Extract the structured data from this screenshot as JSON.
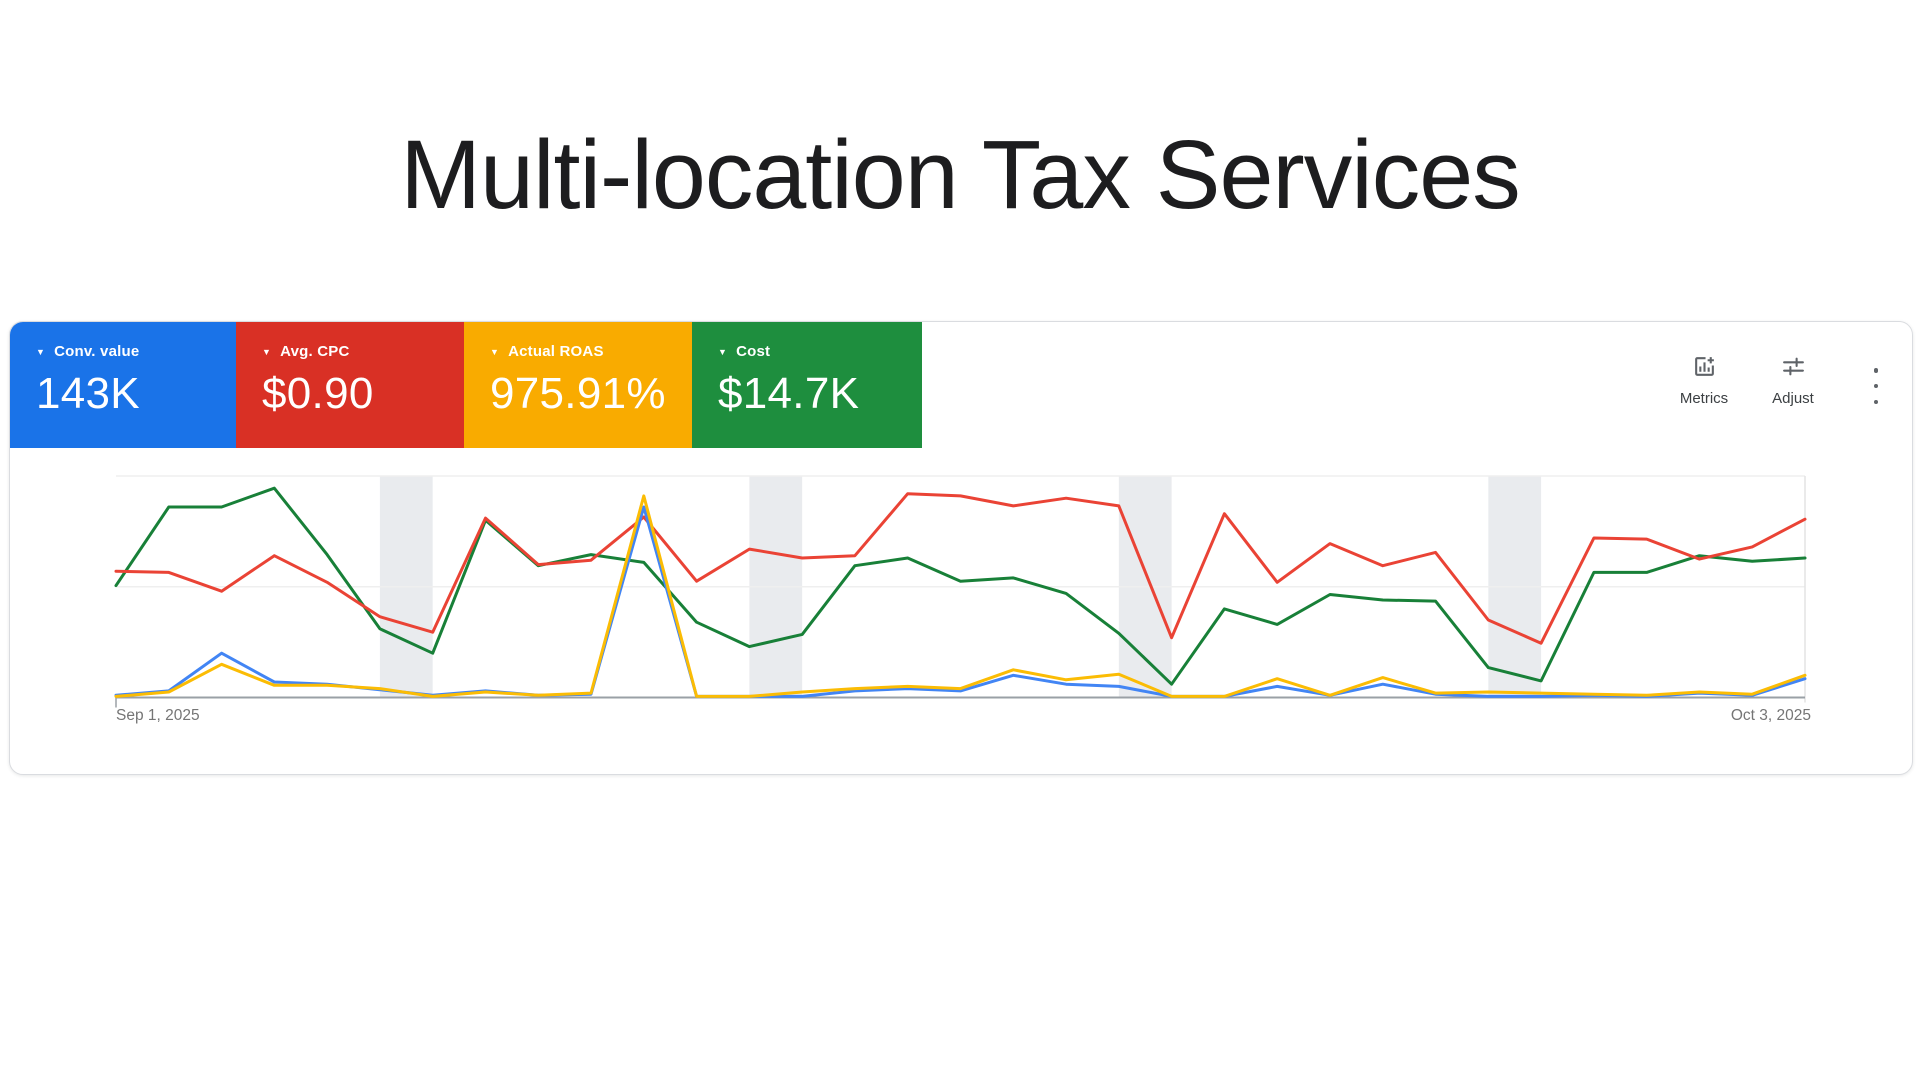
{
  "page": {
    "title": "Multi-location Tax Services"
  },
  "panel": {
    "metric_cards": [
      {
        "label": "Conv. value",
        "value": "143K",
        "color": "#1a73e8",
        "caret_icon": "dropdown-caret"
      },
      {
        "label": "Avg. CPC",
        "value": "$0.90",
        "color": "#d93025",
        "caret_icon": "dropdown-caret"
      },
      {
        "label": "Actual ROAS",
        "value": "975.91%",
        "color": "#f9ab00",
        "caret_icon": "dropdown-caret"
      },
      {
        "label": "Cost",
        "value": "$14.7K",
        "color": "#1e8e3e",
        "caret_icon": "dropdown-caret"
      }
    ],
    "toolbar": {
      "metrics_label": "Metrics",
      "metrics_icon": "add-chart-icon",
      "adjust_label": "Adjust",
      "adjust_icon": "tune-sliders-icon",
      "more_icon": "kebab-menu-icon",
      "icon_color": "#5f6368"
    }
  },
  "chart_data": {
    "type": "line",
    "title": "",
    "xlabel": "",
    "ylabel": "",
    "x_unit": "day",
    "num_points": 33,
    "x_start_label": "Sep 1, 2025",
    "x_end_label": "Oct 3, 2025",
    "ylim": [
      0,
      100
    ],
    "y_note": "values are percent of plot height; each series independently scaled (Google Ads overlay style)",
    "grid": "top and middle horizontal gridlines, baseline axis",
    "legend_position": "none (colors match metric cards)",
    "weekend_band_start_indices": [
      5,
      12,
      19,
      26
    ],
    "weekend_band_color": "#e9ebee",
    "gridline_color": "#efefef",
    "baseline_color": "#9aa0a6",
    "date_label_color": "#757575",
    "series": [
      {
        "name": "Conv. value",
        "color": "#4285f4",
        "z": 3,
        "values": [
          1,
          3,
          20,
          7,
          6,
          3.5,
          1,
          3,
          1,
          1.5,
          86,
          0.5,
          0.5,
          0.5,
          3,
          4,
          3,
          10,
          6,
          5,
          0.5,
          0.5,
          5,
          1,
          6,
          1.5,
          0.5,
          0.5,
          1,
          0.5,
          2,
          1,
          8.5
        ]
      },
      {
        "name": "Avg. CPC",
        "color": "#ea4335",
        "z": 2,
        "values": [
          57,
          56.5,
          48,
          64,
          52,
          36.5,
          29.5,
          81,
          60,
          62,
          81.5,
          52.5,
          67,
          63,
          64,
          92,
          91,
          86.5,
          90,
          86.5,
          27,
          83,
          52,
          69.5,
          59.5,
          65.5,
          35,
          24.5,
          72,
          71.5,
          62.5,
          68,
          80.5
        ]
      },
      {
        "name": "Actual ROAS",
        "color": "#fbbc04",
        "z": 4,
        "values": [
          0.5,
          2.5,
          15,
          5.5,
          5.5,
          4,
          0.5,
          2.5,
          1,
          2,
          91,
          0.5,
          0.5,
          2.5,
          4,
          5,
          4,
          12.5,
          8,
          10.5,
          0.5,
          0.5,
          8.5,
          1,
          9,
          2,
          2.5,
          2,
          1.5,
          1,
          2.5,
          1.5,
          10
        ]
      },
      {
        "name": "Cost",
        "color": "#188038",
        "z": 1,
        "values": [
          50.5,
          86,
          86,
          94.5,
          64.5,
          31,
          20,
          80,
          59.5,
          64.5,
          61,
          34,
          23,
          28.5,
          59.5,
          63,
          52.5,
          54,
          47,
          29,
          6,
          40,
          33,
          46.5,
          44,
          43.5,
          13.5,
          7.5,
          56.5,
          56.5,
          64,
          61.5,
          63
        ]
      }
    ]
  }
}
